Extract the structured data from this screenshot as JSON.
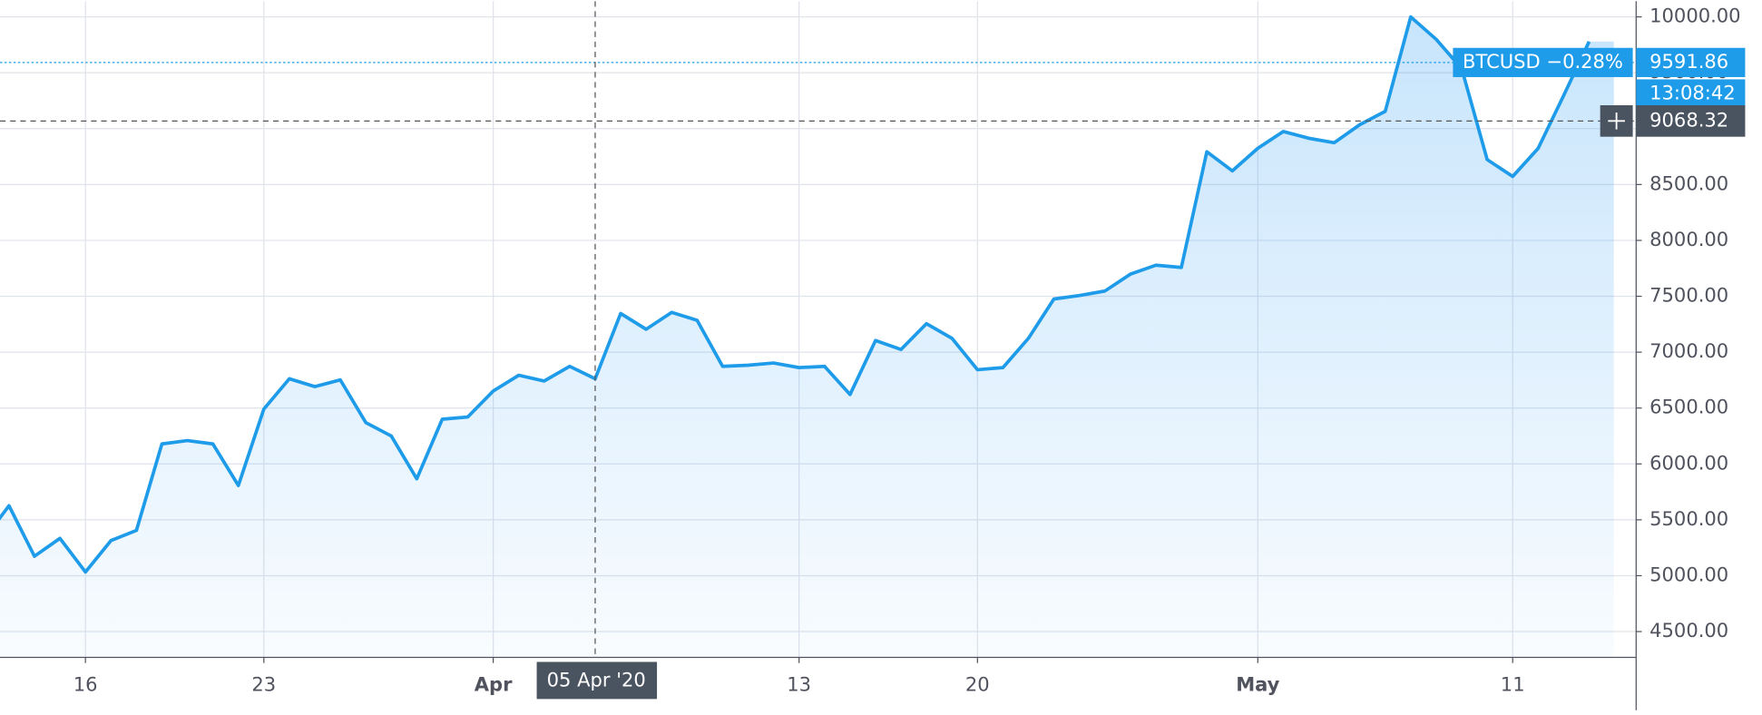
{
  "chart_data": {
    "type": "line",
    "x": [
      "2020-03-13",
      "2020-03-14",
      "2020-03-15",
      "2020-03-16",
      "2020-03-17",
      "2020-03-18",
      "2020-03-19",
      "2020-03-20",
      "2020-03-21",
      "2020-03-22",
      "2020-03-23",
      "2020-03-24",
      "2020-03-25",
      "2020-03-26",
      "2020-03-27",
      "2020-03-28",
      "2020-03-29",
      "2020-03-30",
      "2020-03-31",
      "2020-04-01",
      "2020-04-02",
      "2020-04-03",
      "2020-04-04",
      "2020-04-05",
      "2020-04-06",
      "2020-04-07",
      "2020-04-08",
      "2020-04-09",
      "2020-04-10",
      "2020-04-11",
      "2020-04-12",
      "2020-04-13",
      "2020-04-14",
      "2020-04-15",
      "2020-04-16",
      "2020-04-17",
      "2020-04-18",
      "2020-04-19",
      "2020-04-20",
      "2020-04-21",
      "2020-04-22",
      "2020-04-23",
      "2020-04-24",
      "2020-04-25",
      "2020-04-26",
      "2020-04-27",
      "2020-04-28",
      "2020-04-29",
      "2020-04-30",
      "2020-05-01",
      "2020-05-02",
      "2020-05-03",
      "2020-05-04",
      "2020-05-05",
      "2020-05-06",
      "2020-05-07",
      "2020-05-08",
      "2020-05-09",
      "2020-05-10",
      "2020-05-11",
      "2020-05-12",
      "2020-05-13",
      "2020-05-14"
    ],
    "series": [
      {
        "name": "BTCUSD",
        "color": "#1e9be9",
        "values": [
          5626,
          5174,
          5334,
          5033,
          5314,
          5405,
          6179,
          6209,
          6179,
          5807,
          6491,
          6762,
          6692,
          6752,
          6370,
          6250,
          5867,
          6400,
          6420,
          6652,
          6793,
          6742,
          6873,
          6762,
          7346,
          7205,
          7356,
          7285,
          6873,
          6883,
          6903,
          6862,
          6873,
          6621,
          7104,
          7024,
          7255,
          7124,
          6843,
          6862,
          7124,
          7476,
          7507,
          7547,
          7698,
          7778,
          7758,
          8793,
          8622,
          8824,
          8974,
          8914,
          8874,
          9035,
          9155,
          10000,
          9799,
          9537,
          8723,
          8572,
          8824,
          9296,
          9779
        ]
      }
    ],
    "ylim": [
      4268.7,
      10140.8
    ],
    "yticks": [
      {
        "value": 4500,
        "label": "4500.00"
      },
      {
        "value": 5000,
        "label": "5000.00"
      },
      {
        "value": 5500,
        "label": "5500.00"
      },
      {
        "value": 6000,
        "label": "6000.00"
      },
      {
        "value": 6500,
        "label": "6500.00"
      },
      {
        "value": 7000,
        "label": "7000.00"
      },
      {
        "value": 7500,
        "label": "7500.00"
      },
      {
        "value": 8000,
        "label": "8000.00"
      },
      {
        "value": 8500,
        "label": "8500.00"
      },
      {
        "value": 9000,
        "label": "9000.00"
      },
      {
        "value": 9500,
        "label": "9500.00"
      },
      {
        "value": 10000,
        "label": "10000.00"
      }
    ],
    "xticks": [
      {
        "value": "2020-03-16",
        "label": "16"
      },
      {
        "value": "2020-03-23",
        "label": "23"
      },
      {
        "value": "2020-04-01",
        "label": "Apr"
      },
      {
        "value": "2020-04-13",
        "label": "13"
      },
      {
        "value": "2020-04-20",
        "label": "20"
      },
      {
        "value": "2020-05-01",
        "label": "May"
      },
      {
        "value": "2020-05-11",
        "label": "11"
      }
    ],
    "grid": true,
    "last_price": {
      "label": "BTCUSD −0.28%",
      "value": 9591.86,
      "countdown": "13:08:42"
    },
    "crosshair": {
      "x": {
        "value": "2020-04-05",
        "label": "05 Apr '20"
      },
      "y": 9068.32
    }
  }
}
